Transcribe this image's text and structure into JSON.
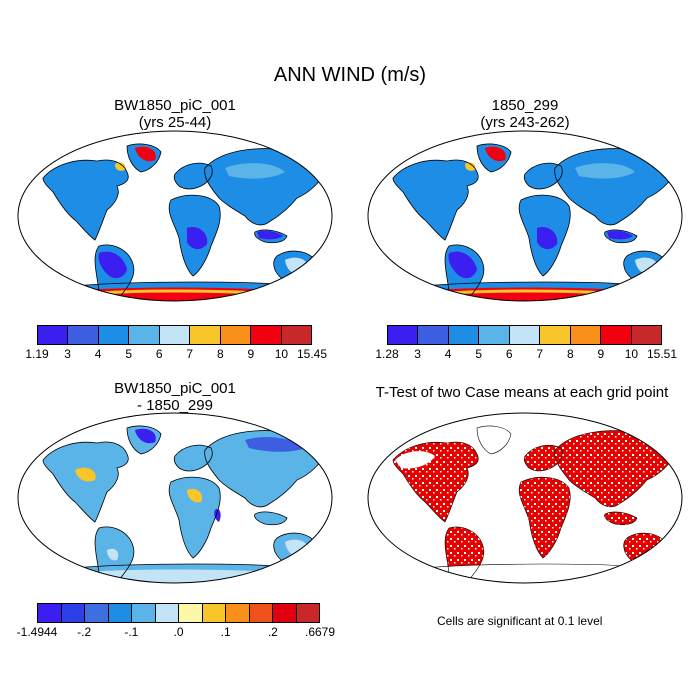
{
  "title": "ANN WIND (m/s)",
  "panels": [
    {
      "title_line1": "BW1850_piC_001",
      "title_line2": "(yrs 25-44)"
    },
    {
      "title_line1": "1850_299",
      "title_line2": "(yrs 243-262)"
    },
    {
      "title_line1": "BW1850_piC_001",
      "title_line2": "- 1850_299"
    },
    {
      "title_line1": "T-Test of two Case means at each grid point",
      "title_line2": ""
    }
  ],
  "colorbars": [
    {
      "colors": [
        "#3b1ff0",
        "#3d5ee0",
        "#1e8de6",
        "#5ab4e8",
        "#c2e4f6",
        "#f8c62a",
        "#f8901a",
        "#f00010",
        "#c8282a"
      ],
      "labels": [
        "1.19",
        "3",
        "4",
        "5",
        "6",
        "7",
        "8",
        "9",
        "10",
        "15.45"
      ]
    },
    {
      "colors": [
        "#3b1ff0",
        "#3d5ee0",
        "#1e8de6",
        "#5ab4e8",
        "#c2e4f6",
        "#f8c62a",
        "#f8901a",
        "#f00010",
        "#c8282a"
      ],
      "labels": [
        "1.28",
        "3",
        "4",
        "5",
        "6",
        "7",
        "8",
        "9",
        "10",
        "15.51"
      ]
    },
    {
      "colors": [
        "#3b1ff0",
        "#2c3fe8",
        "#3d6fe0",
        "#1e8de6",
        "#5ab4e8",
        "#c2e4f6",
        "#fdf8a8",
        "#f8c62a",
        "#f8901a",
        "#f0501a",
        "#e00010",
        "#c8282a"
      ],
      "labels": [
        "-1.4944",
        "-.2",
        "-.1",
        ".0",
        ".1",
        ".2",
        ".6679"
      ],
      "label_positions": [
        0,
        2,
        4,
        6,
        8,
        10,
        12
      ]
    }
  ],
  "note": "Cells are significant at 0.1 level"
}
